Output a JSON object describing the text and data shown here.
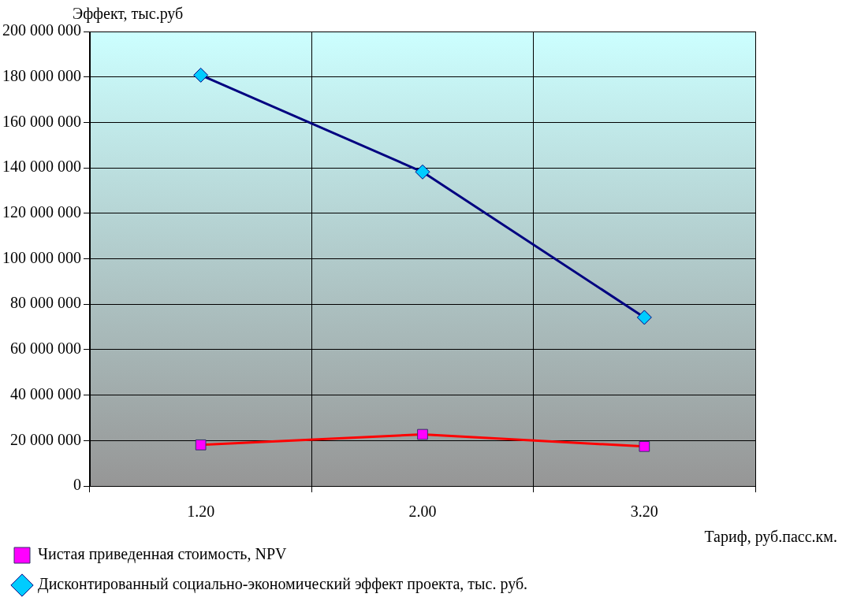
{
  "chart_data": {
    "type": "line",
    "xlabel": "Тариф, руб.пасс.км.",
    "ylabel": "Эффект, тыс.руб",
    "categories": [
      "1.20",
      "2.00",
      "3.20"
    ],
    "series": [
      {
        "name": "Чистая приведенная стоимость, NPV",
        "color": "#ff0000",
        "marker": "square",
        "values": [
          18100000,
          22700000,
          17400000
        ]
      },
      {
        "name": "Дисконтированный социально-экономический эффект проекта, тыс. руб.",
        "color": "#000080",
        "marker": "diamond",
        "values": [
          180800000,
          138200000,
          74200000
        ]
      }
    ],
    "ylim": [
      0,
      200000000
    ],
    "yticks": [
      {
        "value": 0,
        "label": "0"
      },
      {
        "value": 20000000,
        "label": "20 000 000"
      },
      {
        "value": 40000000,
        "label": "40 000 000"
      },
      {
        "value": 60000000,
        "label": "60 000 000"
      },
      {
        "value": 80000000,
        "label": "80 000 000"
      },
      {
        "value": 100000000,
        "label": "100 000 000"
      },
      {
        "value": 120000000,
        "label": "120 000 000"
      },
      {
        "value": 140000000,
        "label": "140 000 000"
      },
      {
        "value": 160000000,
        "label": "160 000 000"
      },
      {
        "value": 180000000,
        "label": "180 000 000"
      },
      {
        "value": 200000000,
        "label": "200 000 000"
      }
    ],
    "grid": true,
    "legend": "bottom",
    "line_style": "solid"
  }
}
